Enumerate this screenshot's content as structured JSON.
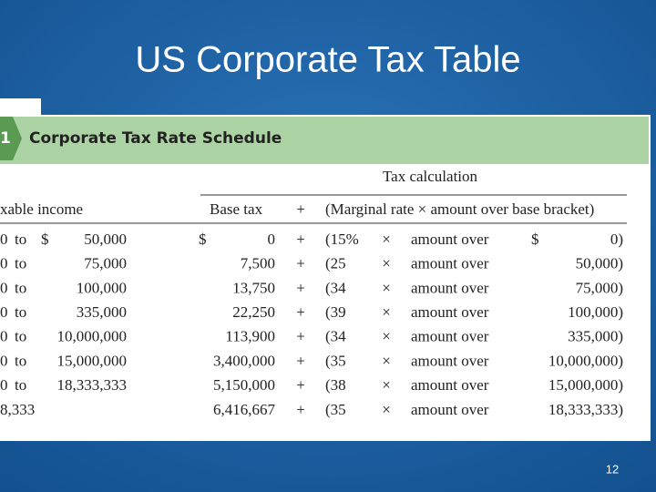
{
  "slide": {
    "title": "US Corporate Tax Table",
    "page_number": "12"
  },
  "table": {
    "number": "1",
    "caption": "Corporate Tax Rate Schedule",
    "group_header": "Tax calculation",
    "headers": {
      "income": "xable income",
      "base": "Base tax",
      "plus": "+",
      "calc": "(Marginal rate × amount over base bracket)"
    },
    "rows": [
      {
        "from": "0",
        "to": "to",
        "dollar": "$",
        "upper": "50,000",
        "base_dollar": "$",
        "base": "0",
        "plus": "+",
        "rate": "(15%",
        "times": "×",
        "over": "amount over",
        "bracket_dollar": "$",
        "bracket": "0)"
      },
      {
        "from": "0",
        "to": "to",
        "upper": "75,000",
        "base": "7,500",
        "plus": "+",
        "rate": "(25",
        "times": "×",
        "over": "amount over",
        "bracket": "50,000)"
      },
      {
        "from": "0",
        "to": "to",
        "upper": "100,000",
        "base": "13,750",
        "plus": "+",
        "rate": "(34",
        "times": "×",
        "over": "amount over",
        "bracket": "75,000)"
      },
      {
        "from": "0",
        "to": "to",
        "upper": "335,000",
        "base": "22,250",
        "plus": "+",
        "rate": "(39",
        "times": "×",
        "over": "amount over",
        "bracket": "100,000)"
      },
      {
        "from": "0",
        "to": "to",
        "upper": "10,000,000",
        "base": "113,900",
        "plus": "+",
        "rate": "(34",
        "times": "×",
        "over": "amount over",
        "bracket": "335,000)"
      },
      {
        "from": "0",
        "to": "to",
        "upper": "15,000,000",
        "base": "3,400,000",
        "plus": "+",
        "rate": "(35",
        "times": "×",
        "over": "amount over",
        "bracket": "10,000,000)"
      },
      {
        "from": "0",
        "to": "to",
        "upper": "18,333,333",
        "base": "5,150,000",
        "plus": "+",
        "rate": "(38",
        "times": "×",
        "over": "amount over",
        "bracket": "15,000,000)"
      },
      {
        "from": "8,333",
        "base": "6,416,667",
        "plus": "+",
        "rate": "(35",
        "times": "×",
        "over": "amount over",
        "bracket": "18,333,333)"
      }
    ]
  }
}
